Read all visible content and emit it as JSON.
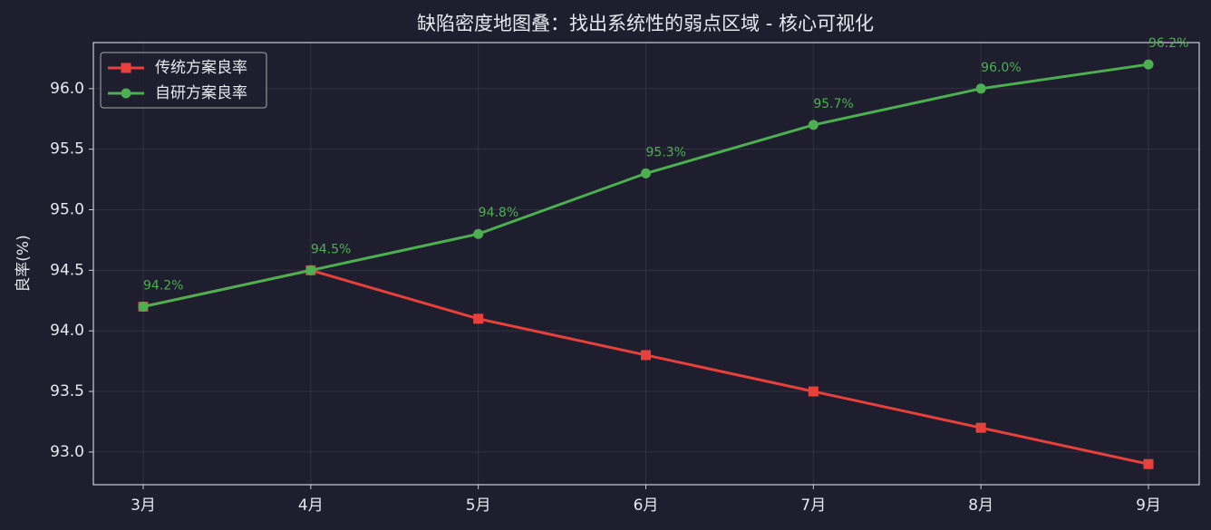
{
  "chart_data": {
    "type": "line",
    "title": "缺陷密度地图叠：找出系统性的弱点区域 - 核心可视化",
    "ylabel": "良率(%)",
    "categories": [
      "3月",
      "4月",
      "5月",
      "6月",
      "7月",
      "8月",
      "9月"
    ],
    "series": [
      {
        "name": "传统方案良率",
        "color": "#e8403a",
        "marker": "square",
        "values": [
          94.2,
          94.5,
          94.1,
          93.8,
          93.5,
          93.2,
          92.9
        ]
      },
      {
        "name": "自研方案良率",
        "color": "#4caf50",
        "marker": "circle",
        "values": [
          94.2,
          94.5,
          94.8,
          95.3,
          95.7,
          96.0,
          96.2
        ],
        "value_labels": [
          "94.2%",
          "94.5%",
          "94.8%",
          "95.3%",
          "95.7%",
          "96.0%",
          "96.2%"
        ]
      }
    ],
    "ylim": [
      92.73,
      96.38
    ],
    "yticks": [
      {
        "value": 93,
        "label": "93.0"
      },
      93.5,
      {
        "value": 94,
        "label": "94.0"
      },
      94.5,
      {
        "value": 95,
        "label": "95.0"
      },
      95.5,
      {
        "value": 96,
        "label": "96.0"
      }
    ],
    "grid": true,
    "legend": "upper left"
  }
}
